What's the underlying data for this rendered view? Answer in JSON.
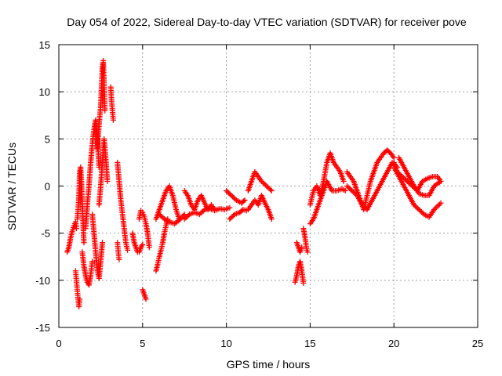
{
  "chart_data": {
    "type": "scatter",
    "title": "Day 054 of 2022, Sidereal Day-to-day VTEC variation (SDTVAR) for receiver pove",
    "xlabel": "GPS time / hours",
    "ylabel": "SDTVAR / TECUs",
    "xlim": [
      0,
      25
    ],
    "ylim": [
      -15,
      15
    ],
    "x_ticks": [
      0,
      5,
      10,
      15,
      20,
      25
    ],
    "x_tick_labels": [
      "0",
      "5",
      "10",
      "15",
      "20",
      "25"
    ],
    "y_ticks": [
      -15,
      -10,
      -5,
      0,
      5,
      10,
      15
    ],
    "y_tick_labels": [
      "-15",
      "-10",
      "-5",
      "0",
      "5",
      "10",
      "15"
    ],
    "grid": true,
    "marker": "+",
    "color": "#ff0000",
    "series": [
      {
        "name": "SDTVAR",
        "tracks": [
          [
            [
              0.5,
              -7.0
            ],
            [
              0.6,
              -6.5
            ],
            [
              0.7,
              -5.5
            ],
            [
              0.8,
              -4.8
            ],
            [
              0.9,
              -4.2
            ],
            [
              1.0,
              -3.8
            ],
            [
              1.05,
              -4.5
            ]
          ],
          [
            [
              1.0,
              -9.0
            ],
            [
              1.05,
              -10.0
            ],
            [
              1.1,
              -11.0
            ],
            [
              1.15,
              -12.0
            ],
            [
              1.2,
              -12.8
            ],
            [
              1.25,
              -12.0
            ]
          ],
          [
            [
              1.1,
              -3.5
            ],
            [
              1.15,
              -2.5
            ],
            [
              1.2,
              -1.0
            ],
            [
              1.25,
              1.5
            ],
            [
              1.3,
              2.0
            ],
            [
              1.35,
              0.5
            ],
            [
              1.4,
              -2.0
            ],
            [
              1.45,
              -4.0
            ],
            [
              1.5,
              -6.0
            ]
          ],
          [
            [
              1.4,
              -7.0
            ],
            [
              1.5,
              -8.5
            ],
            [
              1.6,
              -9.5
            ],
            [
              1.7,
              -10.2
            ],
            [
              1.8,
              -10.5
            ],
            [
              1.9,
              -9.5
            ],
            [
              2.0,
              -8.0
            ]
          ],
          [
            [
              1.6,
              -4.5
            ],
            [
              1.7,
              -2.0
            ],
            [
              1.8,
              0.0
            ],
            [
              1.9,
              2.5
            ],
            [
              2.0,
              4.5
            ],
            [
              2.1,
              6.0
            ],
            [
              2.2,
              7.0
            ],
            [
              2.3,
              5.0
            ],
            [
              2.4,
              2.0
            ]
          ],
          [
            [
              2.0,
              -3.0
            ],
            [
              2.1,
              -5.0
            ],
            [
              2.2,
              -7.0
            ],
            [
              2.3,
              -9.0
            ],
            [
              2.4,
              -9.8
            ],
            [
              2.5,
              -8.0
            ],
            [
              2.6,
              -6.0
            ]
          ],
          [
            [
              2.3,
              4.0
            ],
            [
              2.4,
              6.5
            ],
            [
              2.5,
              8.5
            ],
            [
              2.55,
              10.5
            ],
            [
              2.6,
              12.5
            ],
            [
              2.65,
              13.3
            ],
            [
              2.7,
              11.0
            ],
            [
              2.75,
              8.0
            ]
          ],
          [
            [
              2.4,
              -2.0
            ],
            [
              2.5,
              0.0
            ],
            [
              2.6,
              2.5
            ],
            [
              2.7,
              5.0
            ],
            [
              2.8,
              3.0
            ],
            [
              2.9,
              0.5
            ]
          ],
          [
            [
              3.1,
              10.5
            ],
            [
              3.15,
              9.0
            ],
            [
              3.2,
              8.0
            ],
            [
              3.25,
              7.0
            ]
          ],
          [
            [
              3.5,
              2.5
            ],
            [
              3.6,
              0.5
            ],
            [
              3.7,
              -1.5
            ],
            [
              3.8,
              -3.0
            ],
            [
              3.9,
              -4.5
            ],
            [
              4.0,
              -6.0
            ],
            [
              4.1,
              -6.8
            ]
          ],
          [
            [
              3.5,
              -6.0
            ],
            [
              3.55,
              -7.0
            ],
            [
              3.6,
              -7.8
            ]
          ],
          [
            [
              4.4,
              -5.0
            ],
            [
              4.5,
              -6.0
            ],
            [
              4.6,
              -6.5
            ],
            [
              4.7,
              -7.0
            ],
            [
              4.8,
              -7.0
            ],
            [
              4.9,
              -6.5
            ],
            [
              5.0,
              -6.2
            ]
          ],
          [
            [
              4.8,
              -3.5
            ],
            [
              4.9,
              -2.6
            ],
            [
              5.0,
              -2.8
            ],
            [
              5.1,
              -3.2
            ],
            [
              5.2,
              -4.0
            ],
            [
              5.3,
              -5.0
            ],
            [
              5.4,
              -6.5
            ]
          ],
          [
            [
              5.0,
              -11.0
            ],
            [
              5.1,
              -11.5
            ],
            [
              5.2,
              -12.0
            ]
          ],
          [
            [
              5.8,
              -9.0
            ],
            [
              5.9,
              -8.3
            ],
            [
              6.0,
              -7.5
            ],
            [
              6.1,
              -6.8
            ],
            [
              6.2,
              -6.0
            ],
            [
              6.3,
              -5.0
            ],
            [
              6.4,
              -4.2
            ],
            [
              6.5,
              -3.5
            ]
          ],
          [
            [
              5.8,
              -3.5
            ],
            [
              6.0,
              -2.5
            ],
            [
              6.2,
              -1.5
            ],
            [
              6.4,
              -0.5
            ],
            [
              6.6,
              0.0
            ],
            [
              6.8,
              -1.0
            ],
            [
              7.0,
              -2.5
            ],
            [
              7.2,
              -3.6
            ]
          ],
          [
            [
              6.0,
              -3.0
            ],
            [
              6.3,
              -3.5
            ],
            [
              6.6,
              -3.8
            ],
            [
              6.9,
              -4.0
            ],
            [
              7.2,
              -3.6
            ],
            [
              7.5,
              -3.0
            ]
          ],
          [
            [
              7.5,
              -0.5
            ],
            [
              7.7,
              -1.0
            ],
            [
              7.9,
              -2.0
            ],
            [
              8.1,
              -2.5
            ],
            [
              8.3,
              -1.5
            ],
            [
              8.5,
              -1.0
            ],
            [
              8.7,
              -1.8
            ],
            [
              8.9,
              -2.5
            ],
            [
              9.1,
              -2.0
            ],
            [
              9.3,
              -2.5
            ]
          ],
          [
            [
              7.5,
              -3.5
            ],
            [
              7.8,
              -3.0
            ],
            [
              8.1,
              -2.8
            ],
            [
              8.4,
              -3.0
            ],
            [
              8.7,
              -2.5
            ],
            [
              9.0,
              -2.4
            ],
            [
              9.3,
              -2.6
            ],
            [
              9.6,
              -2.4
            ],
            [
              9.9,
              -2.5
            ],
            [
              10.2,
              -2.3
            ]
          ],
          [
            [
              10.0,
              -0.5
            ],
            [
              10.3,
              -1.0
            ],
            [
              10.6,
              -1.5
            ],
            [
              10.9,
              -1.8
            ],
            [
              11.1,
              -1.5
            ]
          ],
          [
            [
              10.2,
              -3.5
            ],
            [
              10.5,
              -3.0
            ],
            [
              10.8,
              -2.8
            ],
            [
              11.0,
              -2.5
            ],
            [
              11.2,
              -2.6
            ]
          ],
          [
            [
              11.3,
              -0.5
            ],
            [
              11.5,
              0.5
            ],
            [
              11.7,
              1.5
            ],
            [
              11.9,
              1.0
            ],
            [
              12.1,
              0.5
            ],
            [
              12.4,
              0.0
            ],
            [
              12.7,
              -0.5
            ]
          ],
          [
            [
              11.3,
              -2.5
            ],
            [
              11.5,
              -2.0
            ],
            [
              11.7,
              -1.5
            ],
            [
              11.9,
              -2.0
            ],
            [
              12.1,
              -1.0
            ],
            [
              12.3,
              -1.8
            ],
            [
              12.5,
              -2.5
            ],
            [
              12.7,
              -3.5
            ]
          ],
          [
            [
              14.1,
              -10.2
            ],
            [
              14.2,
              -9.5
            ],
            [
              14.3,
              -8.5
            ],
            [
              14.4,
              -8.0
            ],
            [
              14.5,
              -9.0
            ],
            [
              14.6,
              -10.3
            ]
          ],
          [
            [
              14.2,
              -6.0
            ],
            [
              14.3,
              -6.5
            ],
            [
              14.4,
              -7.0
            ],
            [
              14.5,
              -6.5
            ]
          ],
          [
            [
              14.6,
              -4.5
            ],
            [
              14.7,
              -5.5
            ],
            [
              14.8,
              -6.8
            ],
            [
              14.85,
              -7.0
            ]
          ],
          [
            [
              15.0,
              -2.0
            ],
            [
              15.2,
              -0.5
            ],
            [
              15.4,
              0.0
            ],
            [
              15.6,
              -1.0
            ],
            [
              15.8,
              0.5
            ],
            [
              16.0,
              2.5
            ],
            [
              16.2,
              3.5
            ],
            [
              16.4,
              2.5
            ],
            [
              16.6,
              2.0
            ],
            [
              16.8,
              1.5
            ],
            [
              17.0,
              0.5
            ]
          ],
          [
            [
              15.0,
              -4.0
            ],
            [
              15.2,
              -3.5
            ],
            [
              15.4,
              -2.5
            ],
            [
              15.6,
              -1.5
            ],
            [
              15.8,
              -0.5
            ],
            [
              16.0,
              0.5
            ],
            [
              16.3,
              -0.5
            ],
            [
              16.6,
              -0.5
            ],
            [
              16.9,
              -0.3
            ],
            [
              17.1,
              -0.5
            ]
          ],
          [
            [
              17.2,
              1.5
            ],
            [
              17.4,
              1.0
            ],
            [
              17.6,
              0.5
            ],
            [
              17.8,
              -0.5
            ],
            [
              18.0,
              -1.5
            ],
            [
              18.2,
              -2.5
            ],
            [
              18.4,
              -1.0
            ],
            [
              18.6,
              0.5
            ],
            [
              18.8,
              1.5
            ],
            [
              19.0,
              2.5
            ],
            [
              19.2,
              3.0
            ],
            [
              19.4,
              3.5
            ],
            [
              19.6,
              3.8
            ],
            [
              19.8,
              3.5
            ],
            [
              20.0,
              3.0
            ]
          ],
          [
            [
              17.2,
              0.0
            ],
            [
              17.5,
              -0.5
            ],
            [
              17.8,
              -1.0
            ],
            [
              18.1,
              -2.0
            ],
            [
              18.4,
              -2.5
            ],
            [
              18.7,
              -1.5
            ],
            [
              19.0,
              -0.5
            ],
            [
              19.3,
              0.5
            ],
            [
              19.6,
              1.5
            ],
            [
              19.9,
              2.5
            ],
            [
              20.2,
              2.0
            ]
          ],
          [
            [
              20.0,
              2.5
            ],
            [
              20.2,
              1.5
            ],
            [
              20.5,
              1.0
            ],
            [
              20.8,
              0.5
            ],
            [
              21.1,
              0.0
            ],
            [
              21.4,
              -0.5
            ],
            [
              21.7,
              0.5
            ],
            [
              22.0,
              0.8
            ],
            [
              22.3,
              1.0
            ],
            [
              22.6,
              1.0
            ],
            [
              22.8,
              0.5
            ]
          ],
          [
            [
              20.0,
              2.0
            ],
            [
              20.3,
              1.0
            ],
            [
              20.6,
              0.0
            ],
            [
              20.9,
              -1.0
            ],
            [
              21.2,
              -2.0
            ],
            [
              21.5,
              -2.5
            ],
            [
              21.8,
              -3.0
            ],
            [
              22.1,
              -3.3
            ],
            [
              22.4,
              -2.5
            ],
            [
              22.8,
              -1.8
            ]
          ],
          [
            [
              20.3,
              3.0
            ],
            [
              20.6,
              2.0
            ],
            [
              20.9,
              1.0
            ],
            [
              21.2,
              0.0
            ],
            [
              21.5,
              -0.8
            ],
            [
              21.8,
              -1.0
            ],
            [
              22.1,
              -1.0
            ],
            [
              22.4,
              0.0
            ],
            [
              22.8,
              0.5
            ]
          ]
        ]
      }
    ]
  }
}
